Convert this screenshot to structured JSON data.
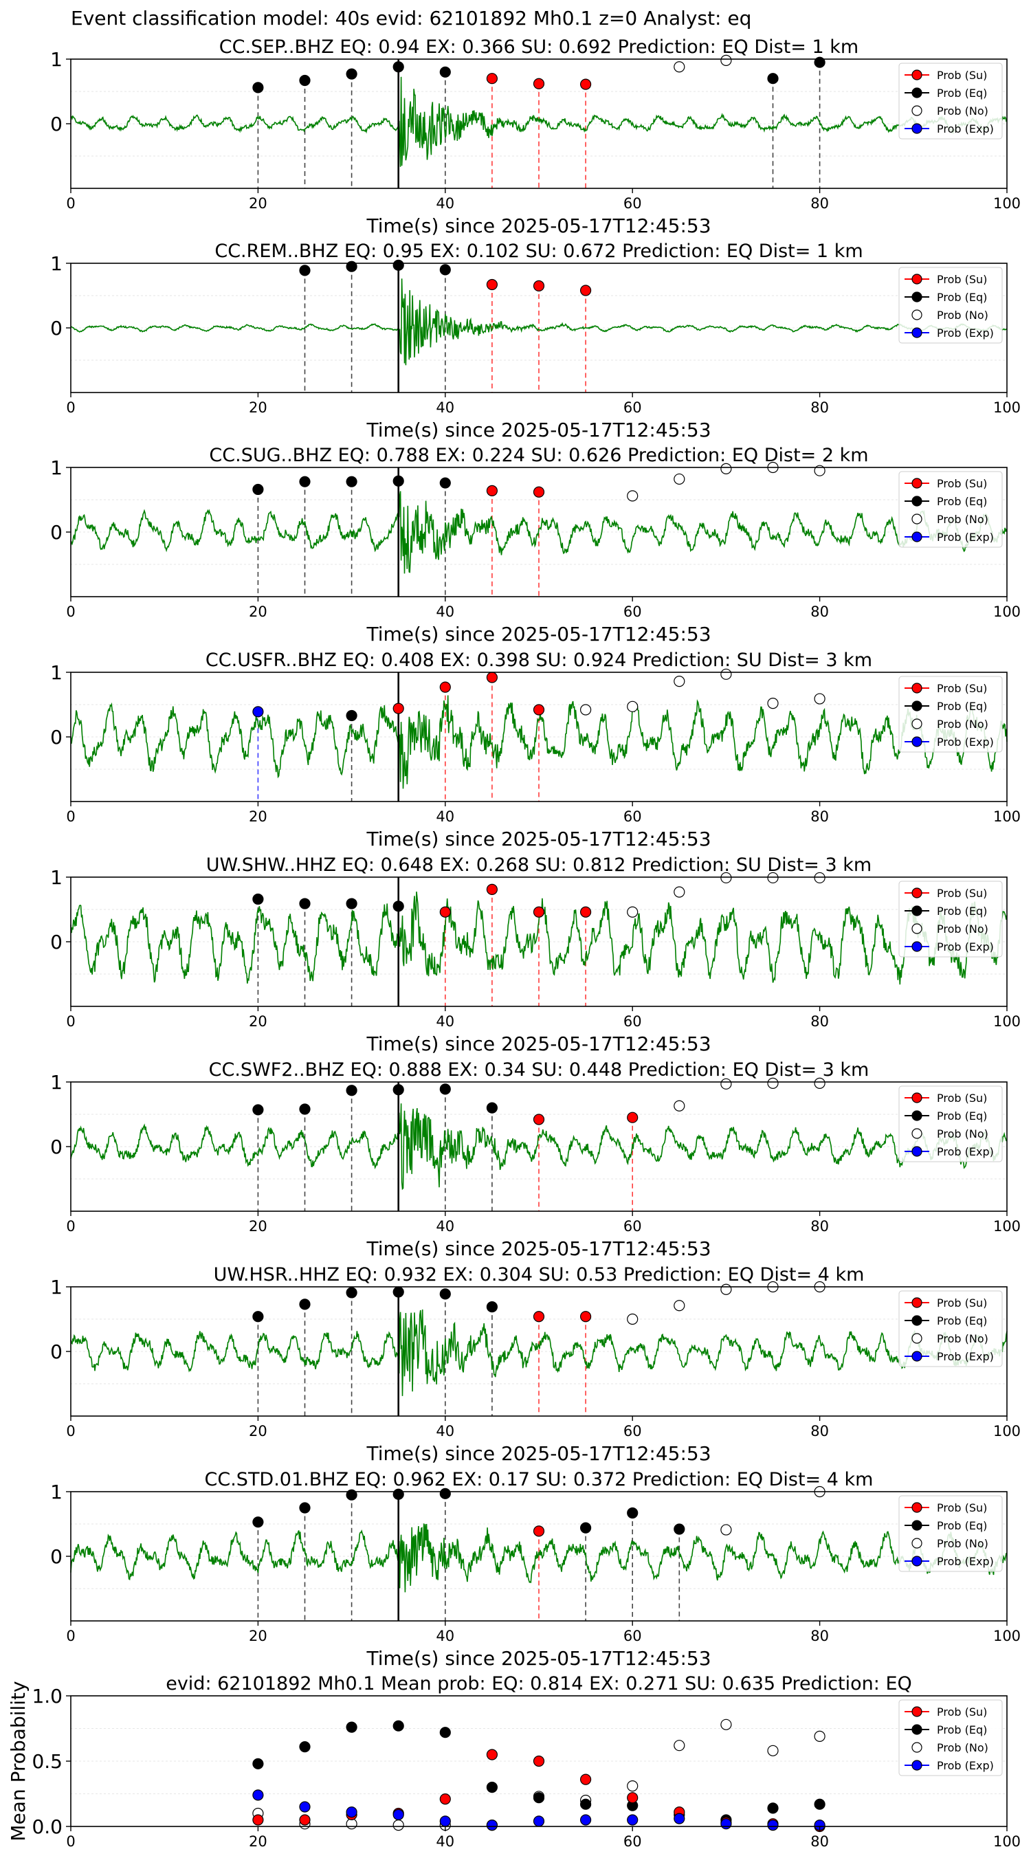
{
  "page": {
    "title": "Event classification model: 40s evid: 62101892 Mh0.1 z=0 Analyst: eq"
  },
  "styles": {
    "colors": {
      "waveform": "#008000",
      "su": "#ff0000",
      "eq": "#000000",
      "no": "#ffffff",
      "exp": "#0000ff",
      "eq_line": "#444444",
      "su_line": "#ff3b3b",
      "exp_line": "#3b3bff",
      "onset_line": "#000000",
      "grid": "#e6e6e6"
    }
  },
  "legend_labels": [
    "Prob (Su)",
    "Prob (Eq)",
    "Prob (No)",
    "Prob (Exp)"
  ],
  "chart_data": [
    {
      "type": "line",
      "title": "CC.SEP..BHZ   EQ: 0.94  EX: 0.366  SU: 0.692   Prediction: EQ    Dist= 1 km",
      "xlabel": "Time(s) since 2025-05-17T12:45:53",
      "xlim": [
        0,
        100
      ],
      "ylim": [
        -1,
        1
      ],
      "xticks": [
        "0",
        "20",
        "40",
        "60",
        "80",
        "100"
      ],
      "yticks": [
        "1",
        "0"
      ],
      "onset": 35,
      "wave_seed": 1,
      "wave_amp": 0.12,
      "burst_amp": 0.85,
      "burst_decay": 4.5,
      "legend_position": "top-right",
      "eq_points": [
        [
          20,
          0.56
        ],
        [
          25,
          0.67
        ],
        [
          30,
          0.77
        ],
        [
          35,
          0.88
        ],
        [
          40,
          0.8
        ],
        [
          75,
          0.7
        ],
        [
          80,
          0.95
        ]
      ],
      "su_points": [
        [
          45,
          0.7
        ],
        [
          50,
          0.62
        ],
        [
          55,
          0.61
        ]
      ],
      "no_points": [
        [
          65,
          0.88
        ],
        [
          70,
          0.98
        ]
      ],
      "exp_points": []
    },
    {
      "type": "line",
      "title": "CC.REM..BHZ   EQ: 0.95  EX: 0.102  SU: 0.672   Prediction: EQ    Dist= 1 km",
      "xlabel": "Time(s) since 2025-05-17T12:45:53",
      "xlim": [
        0,
        100
      ],
      "ylim": [
        -1,
        1
      ],
      "xticks": [
        "0",
        "20",
        "40",
        "60",
        "80",
        "100"
      ],
      "yticks": [
        "1",
        "0"
      ],
      "onset": 35,
      "wave_seed": 2,
      "wave_amp": 0.05,
      "burst_amp": 0.75,
      "burst_decay": 4,
      "legend_position": "top-right",
      "eq_points": [
        [
          25,
          0.89
        ],
        [
          30,
          0.95
        ],
        [
          35,
          0.97
        ],
        [
          40,
          0.9
        ]
      ],
      "su_points": [
        [
          45,
          0.67
        ],
        [
          50,
          0.65
        ],
        [
          55,
          0.58
        ]
      ],
      "no_points": [],
      "exp_points": []
    },
    {
      "type": "line",
      "title": "CC.SUG..BHZ   EQ: 0.788  EX: 0.224  SU: 0.626   Prediction: EQ    Dist= 2 km",
      "xlabel": "Time(s) since 2025-05-17T12:45:53",
      "xlim": [
        0,
        100
      ],
      "ylim": [
        -1,
        1
      ],
      "xticks": [
        "0",
        "20",
        "40",
        "60",
        "80",
        "100"
      ],
      "yticks": [
        "1",
        "0"
      ],
      "onset": 35,
      "wave_seed": 3,
      "wave_amp": 0.28,
      "burst_amp": 0.6,
      "burst_decay": 5,
      "legend_position": "top-right",
      "eq_points": [
        [
          20,
          0.66
        ],
        [
          25,
          0.78
        ],
        [
          30,
          0.78
        ],
        [
          35,
          0.79
        ],
        [
          40,
          0.76
        ]
      ],
      "su_points": [
        [
          45,
          0.64
        ],
        [
          50,
          0.62
        ]
      ],
      "no_points": [
        [
          60,
          0.56
        ],
        [
          65,
          0.82
        ],
        [
          70,
          0.98
        ],
        [
          75,
          1.0
        ],
        [
          80,
          0.95
        ]
      ],
      "exp_points": []
    },
    {
      "type": "line",
      "title": "CC.USFR..BHZ   EQ: 0.408  EX: 0.398  SU: 0.924   Prediction: SU    Dist= 3 km",
      "xlabel": "Time(s) since 2025-05-17T12:45:53",
      "xlim": [
        0,
        100
      ],
      "ylim": [
        -1,
        1
      ],
      "xticks": [
        "0",
        "20",
        "40",
        "60",
        "80",
        "100"
      ],
      "yticks": [
        "1",
        "0"
      ],
      "onset": 35,
      "wave_seed": 4,
      "wave_amp": 0.5,
      "burst_amp": 0.55,
      "burst_decay": 6,
      "legend_position": "top-right",
      "eq_points": [
        [
          30,
          0.33
        ]
      ],
      "su_points": [
        [
          35,
          0.44
        ],
        [
          40,
          0.77
        ],
        [
          45,
          0.92
        ],
        [
          50,
          0.42
        ]
      ],
      "no_points": [
        [
          55,
          0.42
        ],
        [
          60,
          0.47
        ],
        [
          65,
          0.86
        ],
        [
          70,
          0.97
        ],
        [
          75,
          0.52
        ],
        [
          80,
          0.59
        ]
      ],
      "exp_points": [
        [
          20,
          0.39
        ]
      ]
    },
    {
      "type": "line",
      "title": "UW.SHW..HHZ   EQ: 0.648  EX: 0.268  SU: 0.812   Prediction: SU    Dist= 3 km",
      "xlabel": "Time(s) since 2025-05-17T12:45:53",
      "xlim": [
        0,
        100
      ],
      "ylim": [
        -1,
        1
      ],
      "xticks": [
        "0",
        "20",
        "40",
        "60",
        "80",
        "100"
      ],
      "yticks": [
        "1",
        "0"
      ],
      "onset": 35,
      "wave_seed": 5,
      "wave_amp": 0.6,
      "burst_amp": 0.35,
      "burst_decay": 6,
      "legend_position": "top-right",
      "eq_points": [
        [
          20,
          0.66
        ],
        [
          25,
          0.59
        ],
        [
          30,
          0.59
        ],
        [
          35,
          0.55
        ]
      ],
      "su_points": [
        [
          40,
          0.46
        ],
        [
          45,
          0.81
        ],
        [
          50,
          0.46
        ],
        [
          55,
          0.46
        ]
      ],
      "no_points": [
        [
          60,
          0.46
        ],
        [
          65,
          0.77
        ],
        [
          70,
          0.99
        ],
        [
          75,
          0.99
        ],
        [
          80,
          0.99
        ]
      ],
      "exp_points": []
    },
    {
      "type": "line",
      "title": "CC.SWF2..BHZ   EQ: 0.888  EX: 0.34  SU: 0.448   Prediction: EQ    Dist= 3 km",
      "xlabel": "Time(s) since 2025-05-17T12:45:53",
      "xlim": [
        0,
        100
      ],
      "ylim": [
        -1,
        1
      ],
      "xticks": [
        "0",
        "20",
        "40",
        "60",
        "80",
        "100"
      ],
      "yticks": [
        "1",
        "0"
      ],
      "onset": 35,
      "wave_seed": 6,
      "wave_amp": 0.28,
      "burst_amp": 0.7,
      "burst_decay": 5,
      "legend_position": "top-right",
      "eq_points": [
        [
          20,
          0.57
        ],
        [
          25,
          0.58
        ],
        [
          30,
          0.87
        ],
        [
          35,
          0.88
        ],
        [
          40,
          0.89
        ],
        [
          45,
          0.6
        ]
      ],
      "su_points": [
        [
          50,
          0.42
        ],
        [
          60,
          0.45
        ]
      ],
      "no_points": [
        [
          65,
          0.63
        ],
        [
          70,
          0.97
        ],
        [
          75,
          0.98
        ],
        [
          80,
          0.98
        ]
      ],
      "exp_points": []
    },
    {
      "type": "line",
      "title": "UW.HSR..HHZ   EQ: 0.932  EX: 0.304  SU: 0.53   Prediction: EQ    Dist= 4 km",
      "xlabel": "Time(s) since 2025-05-17T12:45:53",
      "xlim": [
        0,
        100
      ],
      "ylim": [
        -1,
        1
      ],
      "xticks": [
        "0",
        "20",
        "40",
        "60",
        "80",
        "100"
      ],
      "yticks": [
        "1",
        "0"
      ],
      "onset": 35,
      "wave_seed": 7,
      "wave_amp": 0.3,
      "burst_amp": 0.75,
      "burst_decay": 5,
      "legend_position": "top-right",
      "eq_points": [
        [
          20,
          0.54
        ],
        [
          25,
          0.73
        ],
        [
          30,
          0.91
        ],
        [
          35,
          0.92
        ],
        [
          40,
          0.89
        ],
        [
          45,
          0.69
        ]
      ],
      "su_points": [
        [
          50,
          0.54
        ],
        [
          55,
          0.54
        ]
      ],
      "no_points": [
        [
          60,
          0.5
        ],
        [
          65,
          0.71
        ],
        [
          70,
          0.96
        ],
        [
          75,
          1.0
        ],
        [
          80,
          1.0
        ]
      ],
      "exp_points": []
    },
    {
      "type": "line",
      "title": "CC.STD.01.BHZ   EQ: 0.962  EX: 0.17  SU: 0.372   Prediction: EQ    Dist= 4 km",
      "xlabel": "Time(s) since 2025-05-17T12:45:53",
      "xlim": [
        0,
        100
      ],
      "ylim": [
        -1,
        1
      ],
      "xticks": [
        "0",
        "20",
        "40",
        "60",
        "80",
        "100"
      ],
      "yticks": [
        "1",
        "0"
      ],
      "onset": 35,
      "wave_seed": 8,
      "wave_amp": 0.32,
      "burst_amp": 0.6,
      "burst_decay": 5,
      "legend_position": "top-right",
      "eq_points": [
        [
          20,
          0.53
        ],
        [
          25,
          0.75
        ],
        [
          30,
          0.95
        ],
        [
          35,
          0.96
        ],
        [
          40,
          0.97
        ],
        [
          55,
          0.44
        ],
        [
          60,
          0.67
        ],
        [
          65,
          0.42
        ]
      ],
      "su_points": [
        [
          50,
          0.39
        ]
      ],
      "no_points": [
        [
          70,
          0.41
        ],
        [
          80,
          1.0
        ]
      ],
      "exp_points": []
    },
    {
      "type": "scatter",
      "title": "evid: 62101892  Mh0.1   Mean prob:   EQ: 0.814  EX: 0.271  SU: 0.635   Prediction: EQ",
      "xlabel": "",
      "ylabel": "Mean Probability",
      "xlim": [
        0,
        100
      ],
      "ylim": [
        0,
        1
      ],
      "xticks": [
        "0",
        "20",
        "40",
        "60",
        "80",
        "100"
      ],
      "yticks": [
        "0.0",
        "0.5",
        "1.0"
      ],
      "legend_position": "top-right",
      "eq_points": [
        [
          20,
          0.48
        ],
        [
          25,
          0.61
        ],
        [
          30,
          0.76
        ],
        [
          35,
          0.77
        ],
        [
          40,
          0.72
        ],
        [
          45,
          0.3
        ],
        [
          50,
          0.22
        ],
        [
          55,
          0.17
        ],
        [
          60,
          0.16
        ],
        [
          65,
          0.09
        ],
        [
          70,
          0.05
        ],
        [
          75,
          0.14
        ],
        [
          80,
          0.17
        ]
      ],
      "su_points": [
        [
          20,
          0.05
        ],
        [
          25,
          0.05
        ],
        [
          30,
          0.09
        ],
        [
          35,
          0.1
        ],
        [
          40,
          0.21
        ],
        [
          45,
          0.55
        ],
        [
          50,
          0.5
        ],
        [
          55,
          0.36
        ],
        [
          60,
          0.22
        ],
        [
          65,
          0.11
        ],
        [
          70,
          0.03
        ],
        [
          75,
          0.02
        ],
        [
          80,
          0.0
        ]
      ],
      "no_points": [
        [
          20,
          0.1
        ],
        [
          25,
          0.02
        ],
        [
          30,
          0.02
        ],
        [
          35,
          0.01
        ],
        [
          40,
          0.01
        ],
        [
          45,
          0.01
        ],
        [
          50,
          0.23
        ],
        [
          55,
          0.2
        ],
        [
          60,
          0.31
        ],
        [
          65,
          0.62
        ],
        [
          70,
          0.78
        ],
        [
          75,
          0.58
        ],
        [
          80,
          0.69
        ]
      ],
      "exp_points": [
        [
          20,
          0.24
        ],
        [
          25,
          0.15
        ],
        [
          30,
          0.11
        ],
        [
          35,
          0.09
        ],
        [
          40,
          0.04
        ],
        [
          45,
          0.01
        ],
        [
          50,
          0.04
        ],
        [
          55,
          0.05
        ],
        [
          60,
          0.05
        ],
        [
          65,
          0.06
        ],
        [
          70,
          0.02
        ],
        [
          75,
          0.01
        ],
        [
          80,
          0.01
        ]
      ]
    }
  ]
}
